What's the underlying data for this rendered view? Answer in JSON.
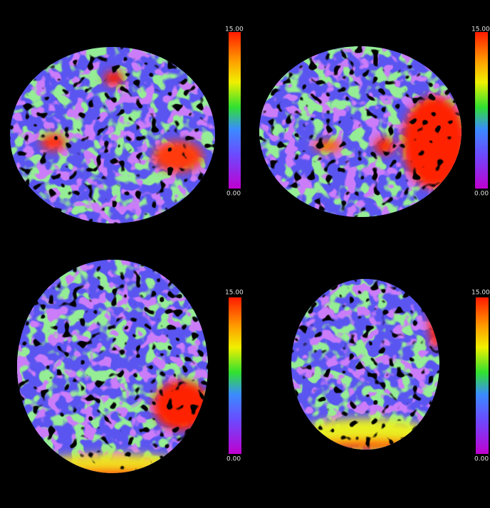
{
  "panels": [
    {
      "scale_max": "15.00",
      "scale_min": "0.00"
    },
    {
      "scale_max": "15.00",
      "scale_min": "0.00"
    },
    {
      "scale_max": "15.00",
      "scale_min": "0.00"
    },
    {
      "scale_max": "15.00",
      "scale_min": "0.00"
    }
  ]
}
